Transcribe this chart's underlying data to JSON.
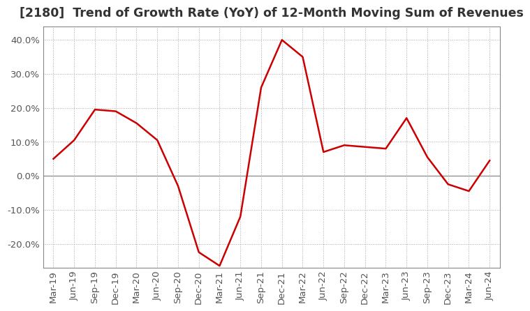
{
  "title": "[2180]  Trend of Growth Rate (YoY) of 12-Month Moving Sum of Revenues",
  "title_fontsize": 12.5,
  "line_color": "#cc0000",
  "line_width": 1.8,
  "background_color": "#ffffff",
  "grid_color": "#aaaaaa",
  "x_labels": [
    "Mar-19",
    "Jun-19",
    "Sep-19",
    "Dec-19",
    "Mar-20",
    "Jun-20",
    "Sep-20",
    "Dec-20",
    "Mar-21",
    "Jun-21",
    "Sep-21",
    "Dec-21",
    "Mar-22",
    "Jun-22",
    "Sep-22",
    "Dec-22",
    "Mar-23",
    "Jun-23",
    "Sep-23",
    "Dec-23",
    "Mar-24",
    "Jun-24"
  ],
  "y_values": [
    5.0,
    10.5,
    19.5,
    19.0,
    15.5,
    10.5,
    -3.0,
    -22.5,
    -26.5,
    -12.0,
    26.0,
    40.0,
    35.0,
    7.0,
    9.0,
    8.5,
    8.0,
    17.0,
    5.5,
    -2.5,
    -4.5,
    4.5
  ],
  "ylim": [
    -27.0,
    44.0
  ],
  "yticks": [
    -20.0,
    -10.0,
    0.0,
    10.0,
    20.0,
    30.0,
    40.0
  ],
  "tick_fontsize": 9.5,
  "label_color": "#555555",
  "spine_color": "#888888"
}
